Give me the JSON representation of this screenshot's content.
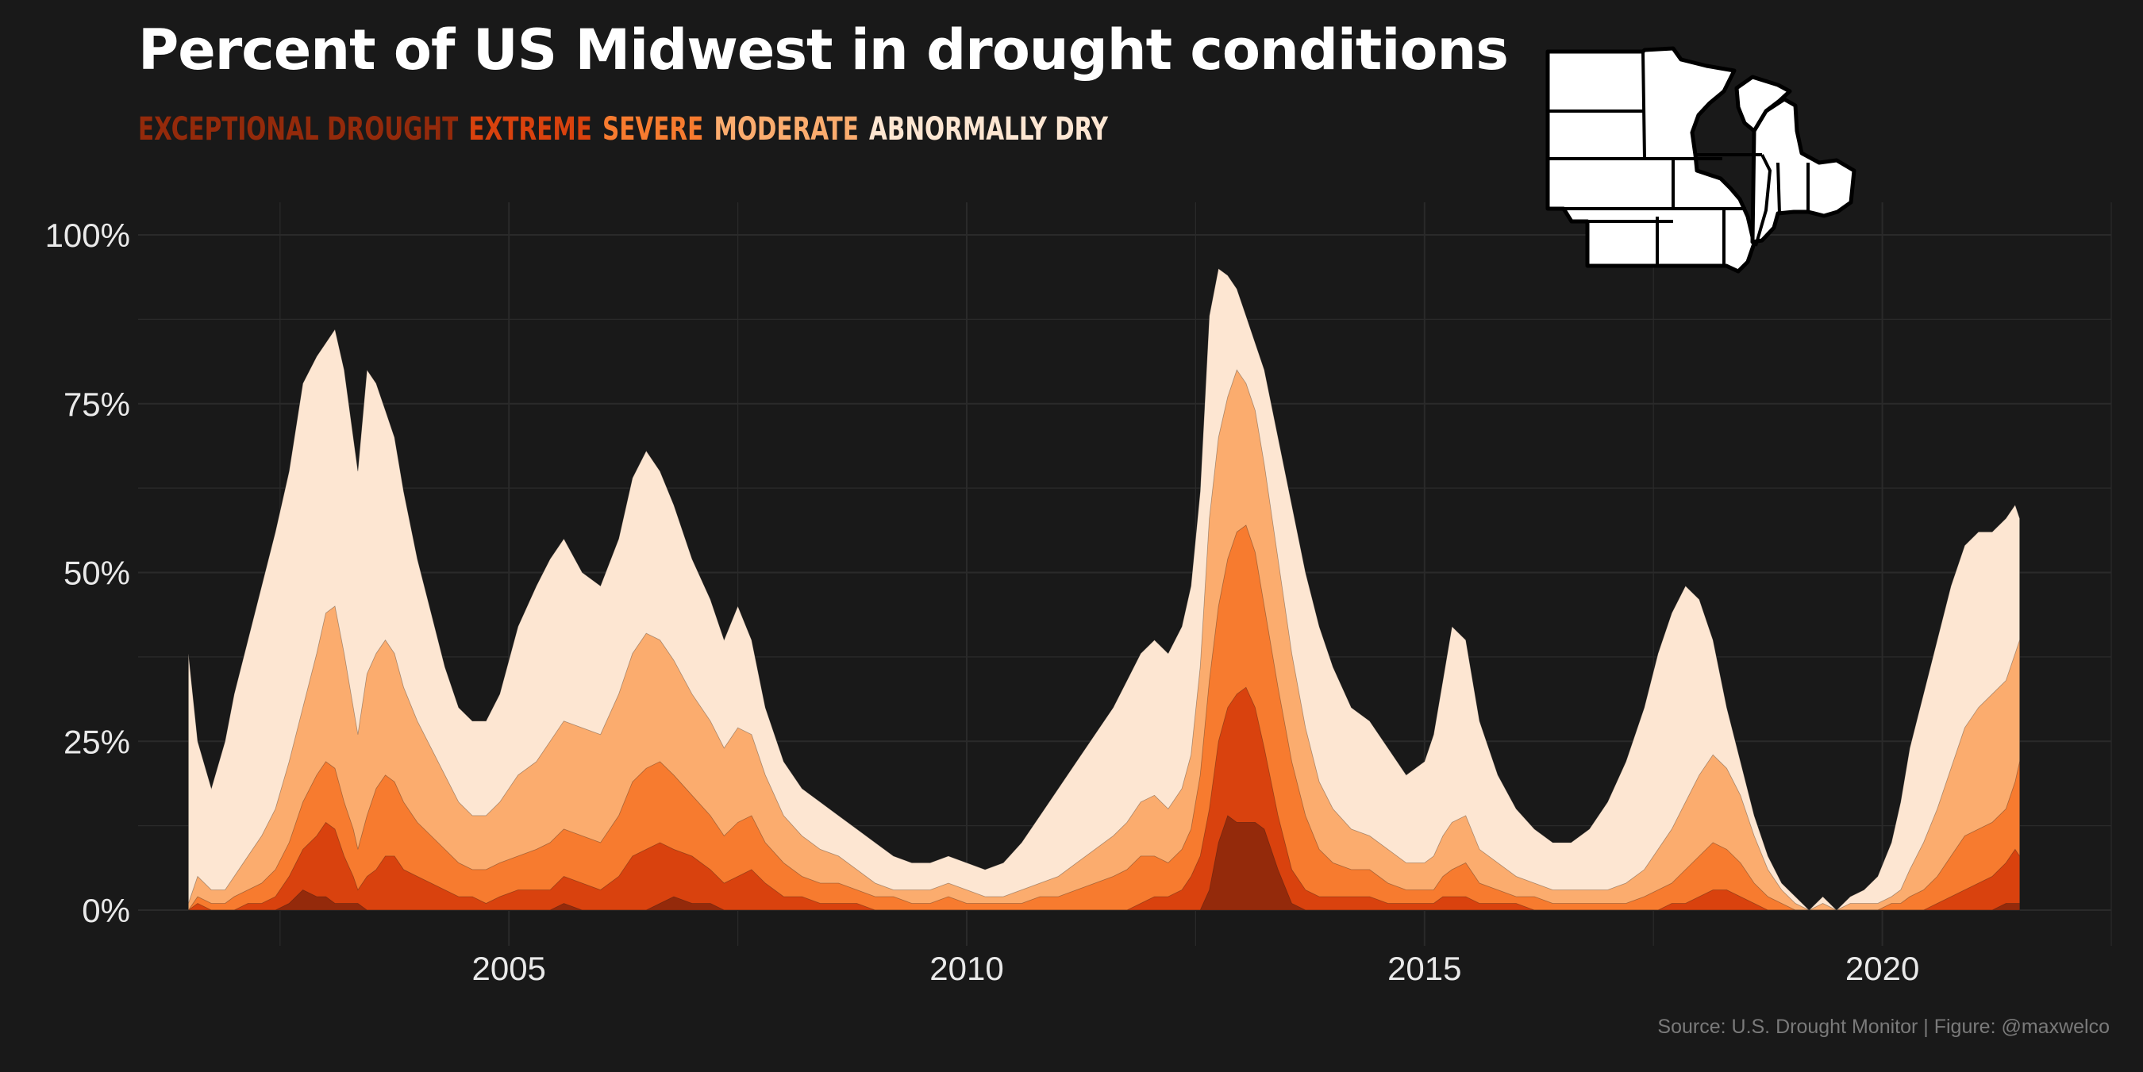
{
  "title": "Percent of US Midwest in drought conditions",
  "legend": [
    {
      "label": "EXCEPTIONAL DROUGHT",
      "color": "#942a0b"
    },
    {
      "label": "EXTREME",
      "color": "#d9420e"
    },
    {
      "label": "SEVERE",
      "color": "#f77b2f"
    },
    {
      "label": "MODERATE",
      "color": "#fbac6e"
    },
    {
      "label": "ABNORMALLY DRY",
      "color": "#fde6d2"
    }
  ],
  "caption": "Source: U.S. Drought Monitor | Figure: @maxwelco",
  "map_icon": "us-midwest-states-map",
  "chart_data": {
    "type": "area",
    "stacked": "cumulative",
    "title": "Percent of US Midwest in drought conditions",
    "xlabel": "",
    "ylabel": "",
    "x_ticks": [
      "2005",
      "2010",
      "2015",
      "2020"
    ],
    "y_ticks": [
      "0%",
      "25%",
      "50%",
      "75%",
      "100%"
    ],
    "xlim": [
      2000.95,
      2022.5
    ],
    "ylim": [
      0,
      100
    ],
    "grid": true,
    "legend_position": "top-left",
    "x": [
      2001.5,
      2001.6,
      2001.75,
      2001.9,
      2002.0,
      2002.15,
      2002.3,
      2002.45,
      2002.6,
      2002.75,
      2002.9,
      2003.0,
      2003.1,
      2003.2,
      2003.3,
      2003.35,
      2003.45,
      2003.55,
      2003.65,
      2003.75,
      2003.85,
      2004.0,
      2004.15,
      2004.3,
      2004.45,
      2004.6,
      2004.75,
      2004.9,
      2005.1,
      2005.3,
      2005.45,
      2005.6,
      2005.8,
      2006.0,
      2006.2,
      2006.35,
      2006.5,
      2006.65,
      2006.8,
      2007.0,
      2007.2,
      2007.35,
      2007.5,
      2007.65,
      2007.8,
      2008.0,
      2008.2,
      2008.4,
      2008.6,
      2008.8,
      2009.0,
      2009.2,
      2009.4,
      2009.6,
      2009.8,
      2010.0,
      2010.2,
      2010.4,
      2010.6,
      2010.8,
      2011.0,
      2011.2,
      2011.4,
      2011.6,
      2011.75,
      2011.9,
      2012.05,
      2012.2,
      2012.35,
      2012.45,
      2012.55,
      2012.65,
      2012.75,
      2012.85,
      2012.95,
      2013.05,
      2013.15,
      2013.25,
      2013.4,
      2013.55,
      2013.7,
      2013.85,
      2014.0,
      2014.2,
      2014.4,
      2014.6,
      2014.8,
      2015.0,
      2015.1,
      2015.2,
      2015.3,
      2015.45,
      2015.6,
      2015.8,
      2016.0,
      2016.2,
      2016.4,
      2016.6,
      2016.8,
      2017.0,
      2017.2,
      2017.4,
      2017.55,
      2017.7,
      2017.85,
      2018.0,
      2018.15,
      2018.3,
      2018.45,
      2018.6,
      2018.75,
      2018.9,
      2019.05,
      2019.2,
      2019.35,
      2019.5,
      2019.65,
      2019.8,
      2019.95,
      2020.1,
      2020.2,
      2020.3,
      2020.45,
      2020.6,
      2020.75,
      2020.9,
      2021.05,
      2021.2,
      2021.35,
      2021.45,
      2021.5
    ],
    "series": [
      {
        "name": "EXCEPTIONAL DROUGHT",
        "values": [
          0,
          0,
          0,
          0,
          0,
          0,
          0,
          0,
          1,
          3,
          2,
          2,
          1,
          1,
          1,
          1,
          0,
          0,
          0,
          0,
          0,
          0,
          0,
          0,
          0,
          0,
          0,
          0,
          0,
          0,
          0,
          1,
          0,
          0,
          0,
          0,
          0,
          1,
          2,
          1,
          1,
          0,
          0,
          0,
          0,
          0,
          0,
          0,
          0,
          0,
          0,
          0,
          0,
          0,
          0,
          0,
          0,
          0,
          0,
          0,
          0,
          0,
          0,
          0,
          0,
          0,
          0,
          0,
          0,
          0,
          0,
          3,
          10,
          14,
          13,
          13,
          13,
          12,
          6,
          1,
          0,
          0,
          0,
          0,
          0,
          0,
          0,
          0,
          0,
          0,
          0,
          0,
          0,
          0,
          0,
          0,
          0,
          0,
          0,
          0,
          0,
          0,
          0,
          0,
          0,
          0,
          0,
          0,
          0,
          0,
          0,
          0,
          0,
          0,
          0,
          0,
          0,
          0,
          0,
          0,
          0,
          0,
          0,
          0,
          0,
          0,
          0,
          0,
          1,
          1,
          1
        ]
      },
      {
        "name": "EXTREME",
        "values": [
          0,
          1,
          0,
          0,
          0,
          1,
          1,
          2,
          5,
          9,
          11,
          13,
          12,
          8,
          5,
          3,
          5,
          6,
          8,
          8,
          6,
          5,
          4,
          3,
          2,
          2,
          1,
          2,
          3,
          3,
          3,
          5,
          4,
          3,
          5,
          8,
          9,
          10,
          9,
          8,
          6,
          4,
          5,
          6,
          4,
          2,
          2,
          1,
          1,
          1,
          0,
          0,
          0,
          0,
          0,
          0,
          0,
          0,
          0,
          0,
          0,
          0,
          0,
          0,
          0,
          1,
          2,
          2,
          3,
          5,
          8,
          15,
          25,
          30,
          32,
          33,
          30,
          24,
          14,
          6,
          3,
          2,
          2,
          2,
          2,
          1,
          1,
          1,
          1,
          2,
          2,
          2,
          1,
          1,
          1,
          0,
          0,
          0,
          0,
          0,
          0,
          0,
          0,
          1,
          1,
          2,
          3,
          3,
          2,
          1,
          0,
          0,
          0,
          0,
          0,
          0,
          0,
          0,
          0,
          0,
          0,
          0,
          0,
          1,
          2,
          3,
          4,
          5,
          7,
          9,
          8
        ]
      },
      {
        "name": "SEVERE",
        "values": [
          0,
          2,
          1,
          1,
          2,
          3,
          4,
          6,
          10,
          16,
          20,
          22,
          21,
          16,
          12,
          9,
          14,
          18,
          20,
          19,
          16,
          13,
          11,
          9,
          7,
          6,
          6,
          7,
          8,
          9,
          10,
          12,
          11,
          10,
          14,
          19,
          21,
          22,
          20,
          17,
          14,
          11,
          13,
          14,
          10,
          7,
          5,
          4,
          4,
          3,
          2,
          2,
          1,
          1,
          2,
          1,
          1,
          1,
          1,
          2,
          2,
          3,
          4,
          5,
          6,
          8,
          8,
          7,
          9,
          12,
          20,
          34,
          45,
          52,
          56,
          57,
          53,
          45,
          33,
          22,
          14,
          9,
          7,
          6,
          6,
          4,
          3,
          3,
          3,
          5,
          6,
          7,
          4,
          3,
          2,
          2,
          1,
          1,
          1,
          1,
          1,
          2,
          3,
          4,
          6,
          8,
          10,
          9,
          7,
          4,
          2,
          1,
          0,
          0,
          0,
          0,
          0,
          0,
          0,
          1,
          1,
          2,
          3,
          5,
          8,
          11,
          12,
          13,
          15,
          19,
          22
        ]
      },
      {
        "name": "MODERATE",
        "values": [
          1,
          5,
          3,
          3,
          5,
          8,
          11,
          15,
          22,
          30,
          38,
          44,
          45,
          38,
          30,
          26,
          35,
          38,
          40,
          38,
          33,
          28,
          24,
          20,
          16,
          14,
          14,
          16,
          20,
          22,
          25,
          28,
          27,
          26,
          32,
          38,
          41,
          40,
          37,
          32,
          28,
          24,
          27,
          26,
          20,
          14,
          11,
          9,
          8,
          6,
          4,
          3,
          3,
          3,
          4,
          3,
          2,
          2,
          3,
          4,
          5,
          7,
          9,
          11,
          13,
          16,
          17,
          15,
          18,
          23,
          36,
          58,
          70,
          76,
          80,
          78,
          74,
          66,
          52,
          38,
          27,
          19,
          15,
          12,
          11,
          9,
          7,
          7,
          8,
          11,
          13,
          14,
          9,
          7,
          5,
          4,
          3,
          3,
          3,
          3,
          4,
          6,
          9,
          12,
          16,
          20,
          23,
          21,
          17,
          11,
          6,
          3,
          1,
          0,
          1,
          0,
          1,
          1,
          1,
          2,
          3,
          6,
          10,
          15,
          21,
          27,
          30,
          32,
          34,
          38,
          40
        ]
      },
      {
        "name": "ABNORMALLY DRY",
        "values": [
          38,
          25,
          18,
          25,
          32,
          40,
          48,
          56,
          65,
          78,
          82,
          84,
          86,
          80,
          70,
          65,
          80,
          78,
          74,
          70,
          62,
          52,
          44,
          36,
          30,
          28,
          28,
          32,
          42,
          48,
          52,
          55,
          50,
          48,
          55,
          64,
          68,
          65,
          60,
          52,
          46,
          40,
          45,
          40,
          30,
          22,
          18,
          16,
          14,
          12,
          10,
          8,
          7,
          7,
          8,
          7,
          6,
          7,
          10,
          14,
          18,
          22,
          26,
          30,
          34,
          38,
          40,
          38,
          42,
          48,
          62,
          88,
          95,
          94,
          92,
          88,
          84,
          80,
          70,
          60,
          50,
          42,
          36,
          30,
          28,
          24,
          20,
          22,
          26,
          34,
          42,
          40,
          28,
          20,
          15,
          12,
          10,
          10,
          12,
          16,
          22,
          30,
          38,
          44,
          48,
          46,
          40,
          30,
          22,
          14,
          8,
          4,
          2,
          0,
          2,
          0,
          2,
          3,
          5,
          10,
          16,
          24,
          32,
          40,
          48,
          54,
          56,
          56,
          58,
          60,
          58
        ]
      }
    ]
  }
}
